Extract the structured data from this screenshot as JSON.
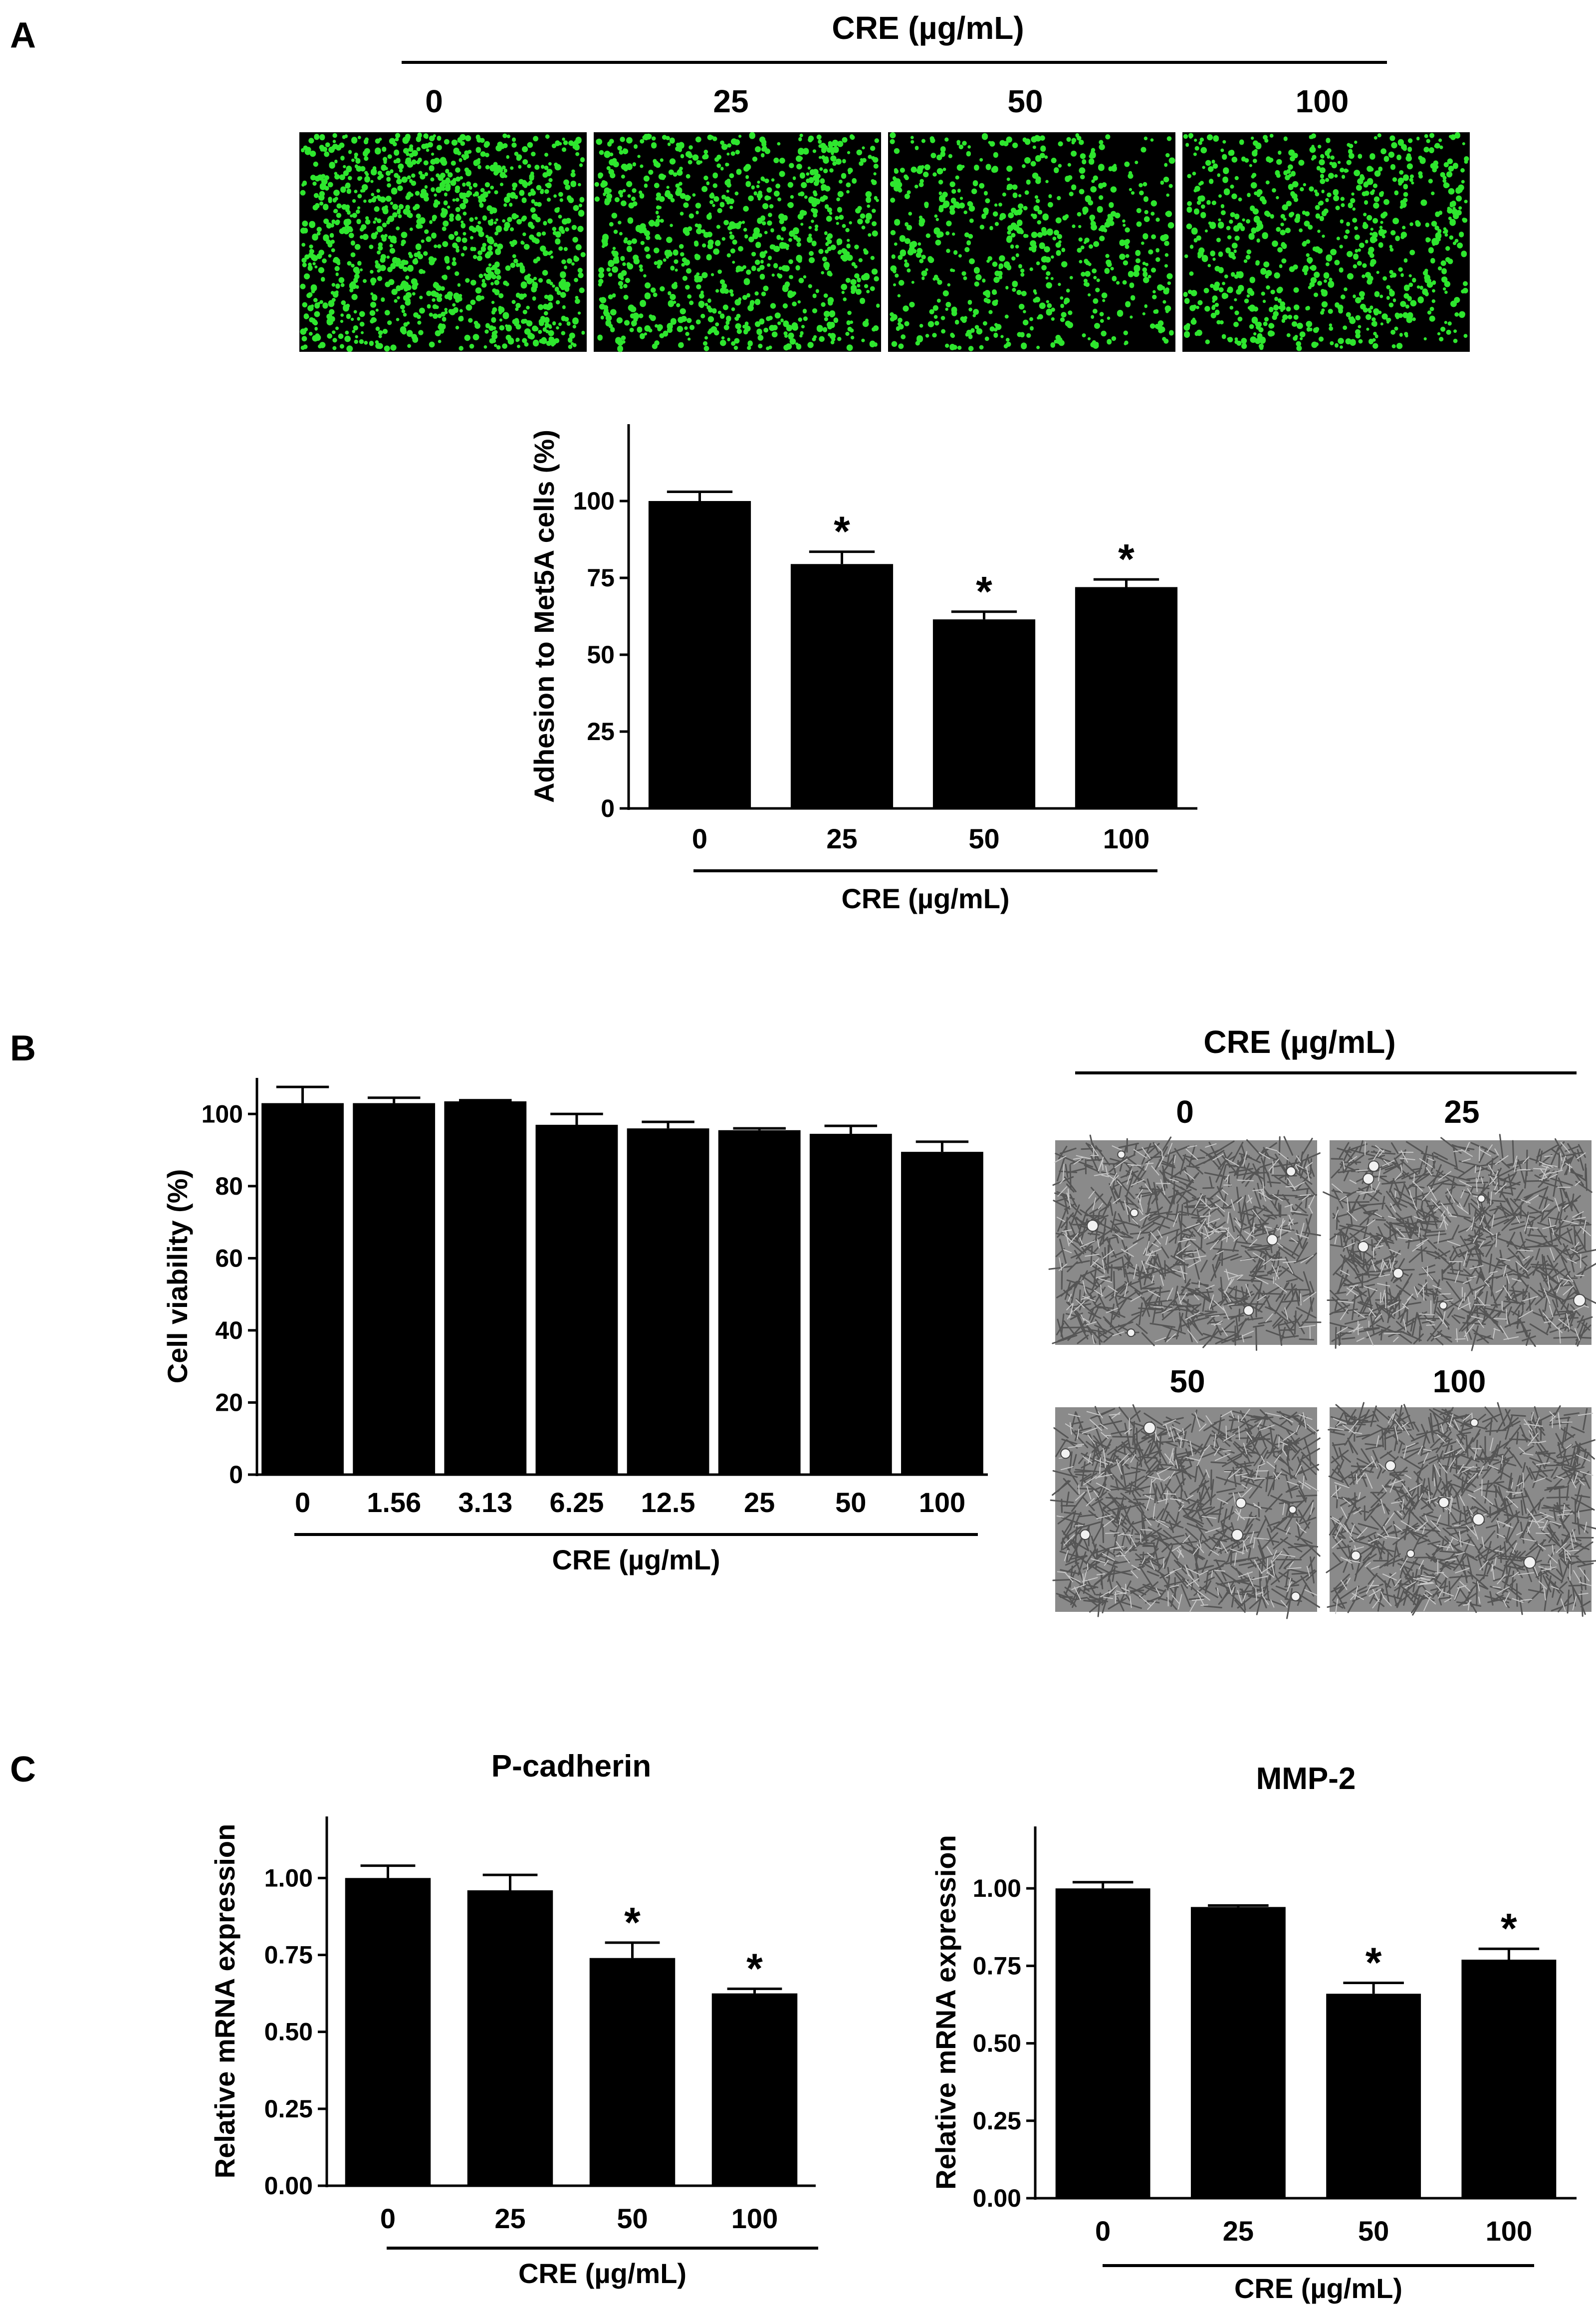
{
  "panel_labels": {
    "a": "A",
    "b": "B",
    "c": "C"
  },
  "panel_a": {
    "micrograph_header": "CRE (µg/mL)",
    "micrograph_labels": [
      "0",
      "25",
      "50",
      "100"
    ]
  },
  "panel_b": {
    "micrograph_header": "CRE (µg/mL)",
    "micrograph_labels": [
      "0",
      "25",
      "50",
      "100"
    ]
  },
  "colors": {
    "bar": "#000000",
    "fluorescence_bg": "#000000",
    "fluorescence_cell": "#2ee62e",
    "phase_bg": "#8a8a8a",
    "phase_cell": "#555555"
  },
  "chart_data": [
    {
      "id": "adhesion",
      "type": "bar",
      "title": "",
      "xlabel": "CRE (µg/mL)",
      "ylabel": "Adhesion to Met5A cells (%)",
      "categories": [
        "0",
        "25",
        "50",
        "100"
      ],
      "values": [
        100,
        79.5,
        61.5,
        72
      ],
      "errors": [
        3,
        4,
        2.5,
        2.5
      ],
      "significant": [
        false,
        true,
        true,
        true
      ],
      "significance_mark": "*",
      "ylim": [
        0,
        125
      ],
      "yticks": [
        0,
        25,
        50,
        75,
        100
      ],
      "yticklabels": [
        "0",
        "25",
        "50",
        "75",
        "100"
      ]
    },
    {
      "id": "viability",
      "type": "bar",
      "title": "",
      "xlabel": "CRE (µg/mL)",
      "ylabel": "Cell viability (%)",
      "categories": [
        "0",
        "1.56",
        "3.13",
        "6.25",
        "12.5",
        "25",
        "50",
        "100"
      ],
      "values": [
        103,
        103,
        103.5,
        97,
        96,
        95.5,
        94.5,
        89.5
      ],
      "errors": [
        4.5,
        1.5,
        0.3,
        3,
        1.8,
        0.5,
        2.2,
        2.8
      ],
      "significant": [
        false,
        false,
        false,
        false,
        false,
        false,
        false,
        false
      ],
      "significance_mark": "*",
      "ylim": [
        0,
        110
      ],
      "yticks": [
        0,
        20,
        40,
        60,
        80,
        100
      ],
      "yticklabels": [
        "0",
        "20",
        "40",
        "60",
        "80",
        "100"
      ]
    },
    {
      "id": "pcadherin",
      "type": "bar",
      "title": "P-cadherin",
      "xlabel": "CRE (µg/mL)",
      "ylabel": "Relative mRNA expression",
      "categories": [
        "0",
        "25",
        "50",
        "100"
      ],
      "values": [
        1.0,
        0.96,
        0.74,
        0.625
      ],
      "errors": [
        0.04,
        0.05,
        0.05,
        0.015
      ],
      "significant": [
        false,
        false,
        true,
        true
      ],
      "significance_mark": "*",
      "ylim": [
        0,
        1.2
      ],
      "yticks": [
        0,
        0.25,
        0.5,
        0.75,
        1.0
      ],
      "yticklabels": [
        "0.00",
        "0.25",
        "0.50",
        "0.75",
        "1.00"
      ]
    },
    {
      "id": "mmp2",
      "type": "bar",
      "title": "MMP-2",
      "xlabel": "CRE (µg/mL)",
      "ylabel": "Relative mRNA expression",
      "categories": [
        "0",
        "25",
        "50",
        "100"
      ],
      "values": [
        1.0,
        0.94,
        0.66,
        0.77
      ],
      "errors": [
        0.02,
        0.005,
        0.035,
        0.035
      ],
      "significant": [
        false,
        false,
        true,
        true
      ],
      "significance_mark": "*",
      "ylim": [
        0,
        1.2
      ],
      "yticks": [
        0,
        0.25,
        0.5,
        0.75,
        1.0
      ],
      "yticklabels": [
        "0.00",
        "0.25",
        "0.50",
        "0.75",
        "1.00"
      ]
    }
  ]
}
